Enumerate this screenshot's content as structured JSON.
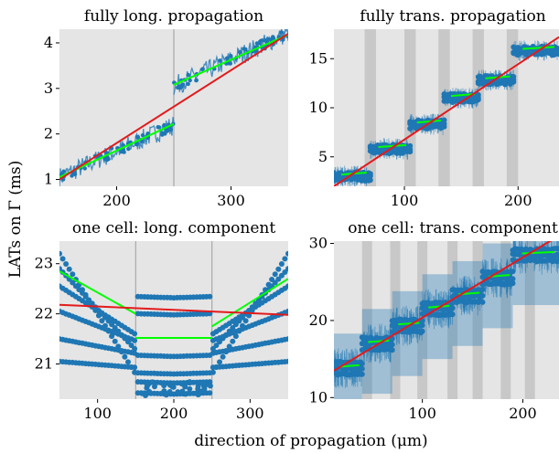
{
  "figure": {
    "ylabel": "LATs on Γ (ms)",
    "xlabel": "direction of propagation (μm)"
  },
  "colors": {
    "background": "#e5e5e5",
    "band": "#c8c8c8",
    "data": "#1f77b4",
    "fit_green": "#00ff00",
    "fit_red": "#e31a1c",
    "divider": "#a9a9a9"
  },
  "chart_data": [
    {
      "type": "scatter",
      "title": "fully long. propagation",
      "xlim": [
        150,
        350
      ],
      "ylim": [
        0.85,
        4.3
      ],
      "xticks": [
        200,
        300
      ],
      "yticks": [
        1,
        2,
        3,
        4
      ],
      "grid": false,
      "cell_boundaries": [
        250
      ],
      "data_segments": [
        {
          "x": [
            150,
            250
          ],
          "y": [
            1.05,
            2.2
          ],
          "spread": 0.22
        },
        {
          "x": [
            250,
            350
          ],
          "y": [
            3.05,
            4.22
          ],
          "spread": 0.22
        }
      ],
      "green_fits": [
        {
          "x": [
            150,
            250
          ],
          "y": [
            1.05,
            2.22
          ]
        },
        {
          "x": [
            250,
            350
          ],
          "y": [
            3.08,
            4.18
          ]
        }
      ],
      "red_fit": {
        "x": [
          150,
          350
        ],
        "y": [
          1.0,
          4.2
        ]
      }
    },
    {
      "type": "scatter",
      "title": "fully trans. propagation",
      "xlim": [
        38,
        236
      ],
      "ylim": [
        2.0,
        18.0
      ],
      "xticks": [
        100,
        200
      ],
      "yticks": [
        5,
        10,
        15
      ],
      "grid": false,
      "gray_bands": [
        [
          65,
          75
        ],
        [
          100,
          110
        ],
        [
          130,
          140
        ],
        [
          160,
          170
        ],
        [
          190,
          200
        ]
      ],
      "steps": [
        {
          "x": [
            38,
            70
          ],
          "y": 3.0
        },
        {
          "x": [
            70,
            105
          ],
          "y": 5.8
        },
        {
          "x": [
            105,
            135
          ],
          "y": 8.3
        },
        {
          "x": [
            135,
            165
          ],
          "y": 11.0
        },
        {
          "x": [
            165,
            196
          ],
          "y": 12.8
        },
        {
          "x": [
            196,
            236
          ],
          "y": 15.8
        }
      ],
      "red_fit": {
        "x": [
          38,
          236
        ],
        "y": [
          2.0,
          17.2
        ]
      }
    },
    {
      "type": "scatter",
      "title": "one cell: long. component",
      "xlim": [
        50,
        350
      ],
      "ylim": [
        20.3,
        23.45
      ],
      "xticks": [
        100,
        200,
        300
      ],
      "yticks": [
        21,
        22,
        23
      ],
      "grid": false,
      "cell_boundaries": [
        150,
        250
      ],
      "green_fits": [
        {
          "x": [
            50,
            150
          ],
          "y": [
            22.85,
            22.0
          ]
        },
        {
          "x": [
            150,
            250
          ],
          "y": [
            21.52,
            21.52
          ]
        },
        {
          "x": [
            250,
            350
          ],
          "y": [
            21.75,
            22.7
          ]
        }
      ],
      "red_fit": {
        "x": [
          50,
          350
        ],
        "y": [
          22.18,
          21.98
        ]
      }
    },
    {
      "type": "scatter",
      "title": "one cell: trans. component",
      "xlim": [
        12,
        236
      ],
      "ylim": [
        9.8,
        30.3
      ],
      "xticks": [
        100,
        200
      ],
      "yticks": [
        10,
        20,
        30
      ],
      "grid": false,
      "gray_bands": [
        [
          40,
          50
        ],
        [
          68,
          78
        ],
        [
          95,
          105
        ],
        [
          125,
          135
        ],
        [
          150,
          160
        ],
        [
          178,
          188
        ],
        [
          202,
          212
        ]
      ],
      "steps": [
        {
          "x": [
            12,
            40
          ],
          "y": 13.8
        },
        {
          "x": [
            40,
            70
          ],
          "y": 17.0
        },
        {
          "x": [
            70,
            100
          ],
          "y": 19.3
        },
        {
          "x": [
            100,
            130
          ],
          "y": 21.5
        },
        {
          "x": [
            130,
            160
          ],
          "y": 23.2
        },
        {
          "x": [
            160,
            190
          ],
          "y": 25.5
        },
        {
          "x": [
            190,
            236
          ],
          "y": 28.5
        }
      ],
      "red_fit": {
        "x": [
          12,
          236
        ],
        "y": [
          13.5,
          31.0
        ]
      }
    }
  ]
}
